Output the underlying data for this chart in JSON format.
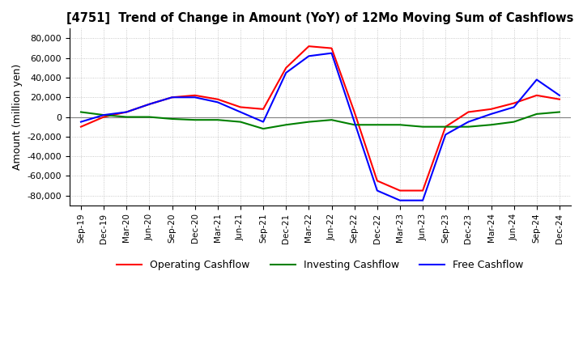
{
  "title": "[4751]  Trend of Change in Amount (YoY) of 12Mo Moving Sum of Cashflows",
  "ylabel": "Amount (million yen)",
  "ylim": [
    -90000,
    90000
  ],
  "yticks": [
    -80000,
    -60000,
    -40000,
    -20000,
    0,
    20000,
    40000,
    60000,
    80000
  ],
  "x_labels": [
    "Sep-19",
    "Dec-19",
    "Mar-20",
    "Jun-20",
    "Sep-20",
    "Dec-20",
    "Mar-21",
    "Jun-21",
    "Sep-21",
    "Dec-21",
    "Mar-22",
    "Jun-22",
    "Sep-22",
    "Dec-22",
    "Mar-23",
    "Jun-23",
    "Sep-23",
    "Dec-23",
    "Mar-24",
    "Jun-24",
    "Sep-24",
    "Dec-24"
  ],
  "operating": [
    -10000,
    0,
    5000,
    13000,
    20000,
    22000,
    18000,
    10000,
    8000,
    50000,
    72000,
    70000,
    5000,
    -65000,
    -75000,
    -75000,
    -10000,
    5000,
    8000,
    14000,
    22000,
    18000
  ],
  "investing": [
    5000,
    2000,
    0,
    0,
    -2000,
    -3000,
    -3000,
    -5000,
    -12000,
    -8000,
    -5000,
    -3000,
    -8000,
    -8000,
    -8000,
    -10000,
    -10000,
    -10000,
    -8000,
    -5000,
    3000,
    5000
  ],
  "free": [
    -5000,
    2000,
    5000,
    13000,
    20000,
    20000,
    15000,
    5000,
    -5000,
    45000,
    62000,
    65000,
    -5000,
    -75000,
    -85000,
    -85000,
    -18000,
    -5000,
    3000,
    10000,
    38000,
    22000
  ],
  "line_colors": {
    "operating": "#ff0000",
    "investing": "#008000",
    "free": "#0000ff"
  },
  "background_color": "#ffffff",
  "grid_color": "#bbbbbb",
  "legend_labels": [
    "Operating Cashflow",
    "Investing Cashflow",
    "Free Cashflow"
  ]
}
